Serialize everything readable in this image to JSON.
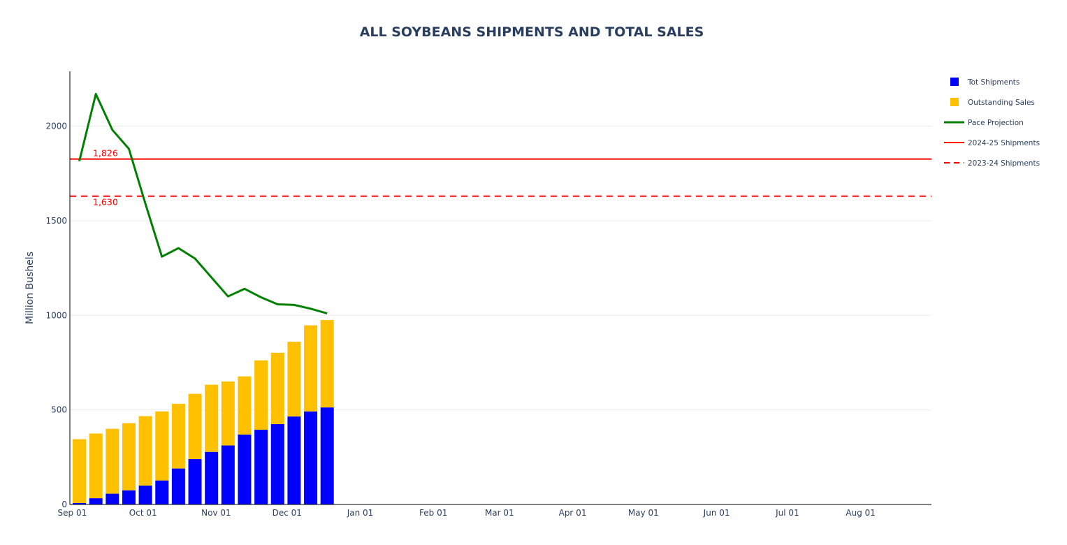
{
  "chart_data": {
    "type": "bar",
    "title": "ALL SOYBEANS SHIPMENTS AND TOTAL SALES",
    "ylabel": "Million Bushels",
    "xlabel": "",
    "ylim": [
      0,
      2290
    ],
    "xlim": [
      "2025-08-31",
      "2026-08-31"
    ],
    "yticks": [
      0,
      500,
      1000,
      1500,
      2000
    ],
    "xticks": [
      {
        "date": "2025-09-01",
        "label": "Sep 01"
      },
      {
        "date": "2025-10-01",
        "label": "Oct 01"
      },
      {
        "date": "2025-11-01",
        "label": "Nov 01"
      },
      {
        "date": "2025-12-01",
        "label": "Dec 01"
      },
      {
        "date": "2026-01-01",
        "label": "Jan 01"
      },
      {
        "date": "2026-02-01",
        "label": "Feb 01"
      },
      {
        "date": "2026-03-01",
        "label": "Mar 01"
      },
      {
        "date": "2026-04-01",
        "label": "Apr 01"
      },
      {
        "date": "2026-05-01",
        "label": "May 01"
      },
      {
        "date": "2026-06-01",
        "label": "Jun 01"
      },
      {
        "date": "2026-07-01",
        "label": "Jul 01"
      },
      {
        "date": "2026-08-01",
        "label": "Aug 01"
      }
    ],
    "grid": true,
    "legend_position": "right",
    "x": [
      "2025-09-04",
      "2025-09-11",
      "2025-09-18",
      "2025-09-25",
      "2025-10-02",
      "2025-10-09",
      "2025-10-16",
      "2025-10-23",
      "2025-10-30",
      "2025-11-06",
      "2025-11-13",
      "2025-11-20",
      "2025-11-27",
      "2025-12-04",
      "2025-12-11",
      "2025-12-18"
    ],
    "series": [
      {
        "name": "Tot Shipments",
        "kind": "bar",
        "color": "#0000ff",
        "values": [
          8,
          33,
          57,
          75,
          100,
          127,
          190,
          240,
          278,
          312,
          370,
          395,
          425,
          465,
          492,
          513
        ]
      },
      {
        "name": "Outstanding Sales",
        "kind": "bar",
        "color": "#ffc000",
        "values": [
          337,
          342,
          343,
          355,
          367,
          365,
          342,
          345,
          355,
          338,
          307,
          367,
          377,
          395,
          455,
          462
        ]
      },
      {
        "name": "Pace Projection",
        "kind": "line",
        "color": "#008000",
        "values": [
          1815,
          2170,
          1980,
          1880,
          1590,
          1310,
          1355,
          1300,
          1200,
          1100,
          1140,
          1095,
          1058,
          1055,
          1035,
          1010
        ]
      },
      {
        "name": "2024-25 Shipments",
        "kind": "hline",
        "color": "#ff0000",
        "dash": "solid",
        "value": 1826
      },
      {
        "name": "2023-24 Shipments",
        "kind": "hline",
        "color": "#ff0000",
        "dash": "dash",
        "value": 1630
      }
    ],
    "annotations": [
      {
        "text": "1,826",
        "value": 1826
      },
      {
        "text": "1,630",
        "value": 1630
      }
    ]
  }
}
